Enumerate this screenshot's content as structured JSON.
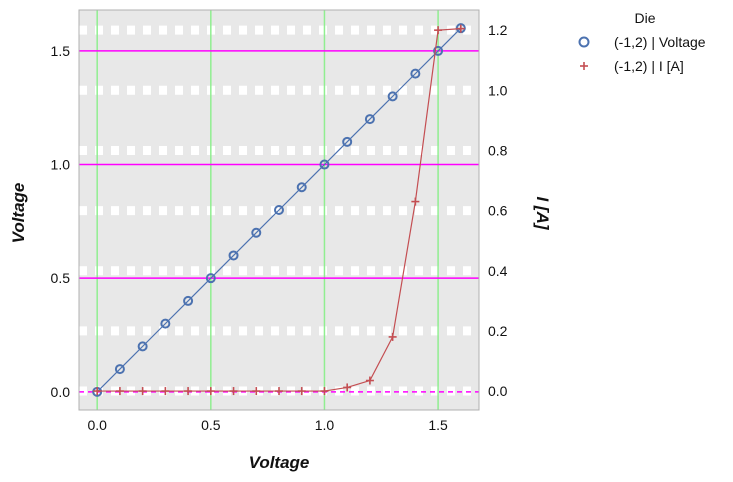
{
  "chart_data": {
    "type": "line",
    "xlabel": "Voltage",
    "ylabel_left": "Voltage",
    "ylabel_right": "I [A]",
    "xlim": [
      -0.08,
      1.68
    ],
    "ylim_left": [
      -0.08,
      1.68
    ],
    "ylim_right": [
      -0.063,
      1.267
    ],
    "xticks": [
      "0.0",
      "0.5",
      "1.0",
      "1.5"
    ],
    "yticks_left": [
      "0.0",
      "0.5",
      "1.0",
      "1.5"
    ],
    "yticks_right": [
      "0.0",
      "0.2",
      "0.4",
      "0.6",
      "0.8",
      "1.0",
      "1.2"
    ],
    "legend": {
      "title": "Die",
      "placement": "outside-right-top"
    },
    "colors": {
      "plot_bg": "#e8e8e8",
      "voltage_series": "#4c72b0",
      "current_series": "#c44e52",
      "vertical_grid": "#90ee90",
      "horizontal_grid": "#ff00ff",
      "right_grid": "#ffffff"
    },
    "series": [
      {
        "name": "(-1,2) | Voltage",
        "axis": "left",
        "marker": "circle",
        "x": [
          0.0,
          0.1,
          0.2,
          0.3,
          0.4,
          0.5,
          0.6,
          0.7,
          0.8,
          0.9,
          1.0,
          1.1,
          1.2,
          1.3,
          1.4,
          1.5,
          1.6
        ],
        "y": [
          0.0,
          0.1,
          0.2,
          0.3,
          0.4,
          0.5,
          0.6,
          0.7,
          0.8,
          0.9,
          1.0,
          1.1,
          1.2,
          1.3,
          1.4,
          1.5,
          1.6
        ]
      },
      {
        "name": "(-1,2) | I [A]",
        "axis": "right",
        "marker": "plus",
        "x": [
          0.0,
          0.1,
          0.2,
          0.3,
          0.4,
          0.5,
          0.6,
          0.7,
          0.8,
          0.9,
          1.0,
          1.1,
          1.2,
          1.3,
          1.4,
          1.5,
          1.6
        ],
        "y": [
          0.0,
          0.0,
          0.0,
          0.0,
          0.0,
          0.0,
          0.0,
          0.0,
          0.0,
          0.0,
          0.0,
          0.012,
          0.035,
          0.18,
          0.63,
          1.2,
          1.205
        ]
      }
    ]
  }
}
